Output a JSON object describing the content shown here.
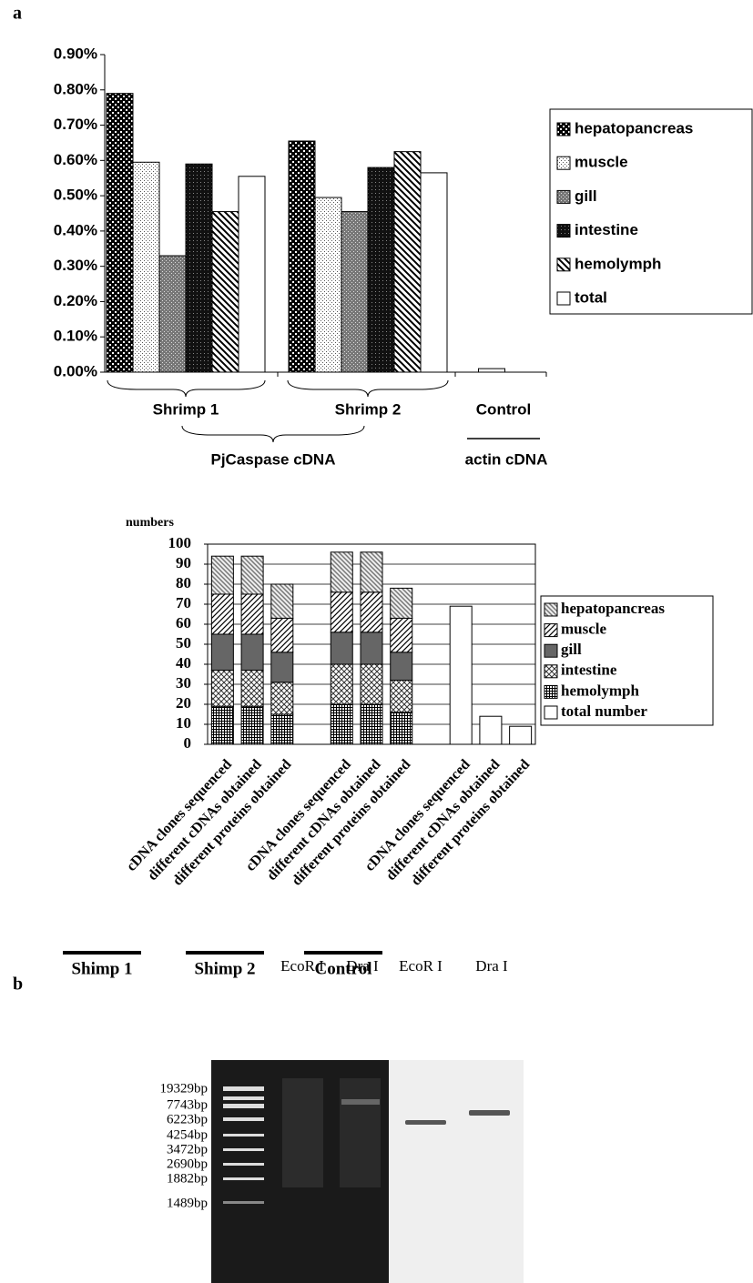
{
  "panel_labels": [
    "a",
    "b"
  ],
  "chart_data": [
    {
      "type": "grouped_bar",
      "categories": [
        "Shrimp 1",
        "Shrimp 2",
        "Control"
      ],
      "annotations": [
        "PjCaspase cDNA",
        "actin cDNA"
      ],
      "ylim": [
        0,
        0.9
      ],
      "yticks": [
        {
          "value": 0,
          "label": "0.00%"
        },
        {
          "value": 0.1,
          "label": "0.10%"
        },
        {
          "value": 0.2,
          "label": "0.20%"
        },
        {
          "value": 0.3,
          "label": "0.30%"
        },
        {
          "value": 0.4,
          "label": "0.40%"
        },
        {
          "value": 0.5,
          "label": "0.50%"
        },
        {
          "value": 0.6,
          "label": "0.60%"
        },
        {
          "value": 0.7,
          "label": "0.70%"
        },
        {
          "value": 0.8,
          "label": "0.80%"
        },
        {
          "value": 0.9,
          "label": "0.90%"
        }
      ],
      "legend": "right",
      "series": [
        {
          "name": "hepatopancreas",
          "pattern": "checker",
          "values": [
            0.79,
            0.655,
            null
          ]
        },
        {
          "name": "muscle",
          "pattern": "dots",
          "values": [
            0.595,
            0.495,
            null
          ]
        },
        {
          "name": "gill",
          "pattern": "gray",
          "values": [
            0.33,
            0.455,
            null
          ]
        },
        {
          "name": "intestine",
          "pattern": "dark",
          "values": [
            0.59,
            0.58,
            null
          ]
        },
        {
          "name": "hemolymph",
          "pattern": "diag",
          "values": [
            0.455,
            0.625,
            null
          ]
        },
        {
          "name": "total",
          "pattern": "white",
          "values": [
            0.555,
            0.565,
            0.01
          ]
        }
      ]
    },
    {
      "type": "stacked_bar",
      "ylabel": "numbers",
      "categories": [
        "cDNA clones sequenced",
        "different cDNAs obtained",
        "different proteins obtained",
        null,
        "cDNA clones sequenced",
        "different cDNAs obtained",
        "different proteins obtained",
        null,
        "cDNA clones sequenced",
        "different cDNAs obtained",
        "different proteins obtained"
      ],
      "x_groups": [
        "Shimp 1",
        "Shimp 2",
        "Control"
      ],
      "ylim": [
        0,
        100
      ],
      "yticks": [
        0,
        10,
        20,
        30,
        40,
        50,
        60,
        70,
        80,
        90,
        100
      ],
      "grid": true,
      "legend": "right",
      "series": [
        {
          "name": "hepatopancreas",
          "pattern": "hatch-light",
          "values": [
            19,
            19,
            17,
            null,
            20,
            20,
            15,
            null,
            null,
            null,
            null
          ]
        },
        {
          "name": "muscle",
          "pattern": "hatch",
          "values": [
            20,
            20,
            17,
            null,
            20,
            20,
            17,
            null,
            null,
            null,
            null
          ]
        },
        {
          "name": "gill",
          "pattern": "solid-gray",
          "values": [
            18,
            18,
            15,
            null,
            16,
            16,
            14,
            null,
            null,
            null,
            null
          ]
        },
        {
          "name": "intestine",
          "pattern": "cross",
          "values": [
            18,
            18,
            16,
            null,
            20,
            20,
            16,
            null,
            null,
            null,
            null
          ]
        },
        {
          "name": "hemolymph",
          "pattern": "grid",
          "values": [
            19,
            19,
            15,
            null,
            20,
            20,
            16,
            null,
            null,
            null,
            null
          ]
        },
        {
          "name": "total number",
          "pattern": "white",
          "values": [
            null,
            null,
            null,
            null,
            null,
            null,
            null,
            null,
            69,
            14,
            9
          ]
        }
      ]
    }
  ],
  "gel": {
    "lanes": [
      "EcoR I",
      "Dra I",
      "EcoR I",
      "Dra I"
    ],
    "ladder": [
      "19329bp",
      "7743bp",
      "6223bp",
      "4254bp",
      "3472bp",
      "2690bp",
      "1882bp",
      "1489bp"
    ]
  }
}
